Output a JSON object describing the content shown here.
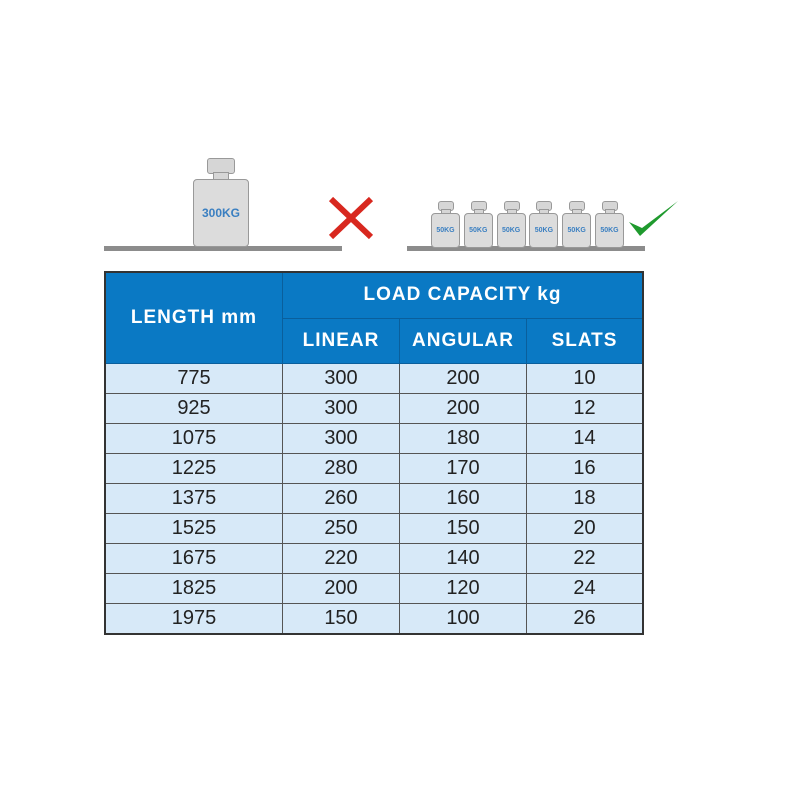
{
  "illustration": {
    "big_weight_label": "300KG",
    "small_weight_labels": [
      "50KG",
      "50KG",
      "50KG",
      "50KG",
      "50KG",
      "50KG"
    ],
    "wrong_color": "#d8281f",
    "right_color": "#1f9a2e"
  },
  "table": {
    "header_length": "LENGTH mm",
    "header_group": "LOAD CAPACITY kg",
    "sub_headers": [
      "LINEAR",
      "ANGULAR",
      "SLATS"
    ],
    "rows": [
      [
        "775",
        "300",
        "200",
        "10"
      ],
      [
        "925",
        "300",
        "200",
        "12"
      ],
      [
        "1075",
        "300",
        "180",
        "14"
      ],
      [
        "1225",
        "280",
        "170",
        "16"
      ],
      [
        "1375",
        "260",
        "160",
        "18"
      ],
      [
        "1525",
        "250",
        "150",
        "20"
      ],
      [
        "1675",
        "220",
        "140",
        "22"
      ],
      [
        "1825",
        "200",
        "120",
        "24"
      ],
      [
        "1975",
        "150",
        "100",
        "26"
      ]
    ]
  }
}
